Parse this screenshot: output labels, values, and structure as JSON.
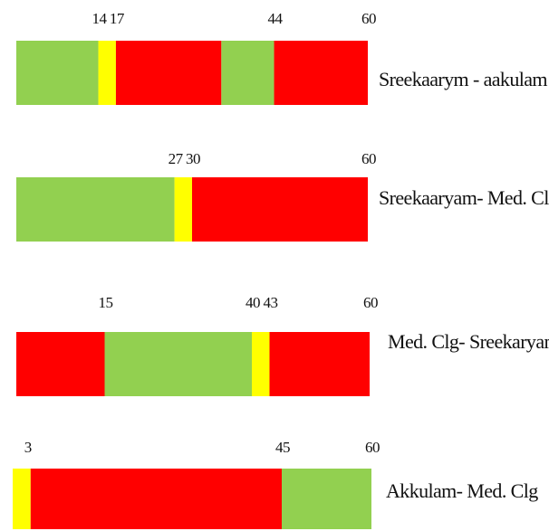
{
  "chart_data": {
    "type": "bar",
    "colors": {
      "green": "#92d050",
      "yellow": "#ffff00",
      "red": "#ff0000"
    },
    "bars": [
      {
        "route": "Sreekaarym - aakulam",
        "segments": [
          {
            "from": 0,
            "to": 14,
            "color": "green"
          },
          {
            "from": 14,
            "to": 17,
            "color": "yellow"
          },
          {
            "from": 17,
            "to": 35,
            "color": "red"
          },
          {
            "from": 35,
            "to": 44,
            "color": "green"
          },
          {
            "from": 44,
            "to": 60,
            "color": "red"
          }
        ],
        "tick_labels": [
          "14",
          "17",
          "44",
          "60"
        ],
        "tick_values": [
          14,
          17,
          44,
          60
        ]
      },
      {
        "route": "Sreekaaryam- Med. Clg",
        "segments": [
          {
            "from": 0,
            "to": 27,
            "color": "green"
          },
          {
            "from": 27,
            "to": 30,
            "color": "yellow"
          },
          {
            "from": 30,
            "to": 60,
            "color": "red"
          }
        ],
        "tick_labels": [
          "27",
          "30",
          "60"
        ],
        "tick_values": [
          27,
          30,
          60
        ]
      },
      {
        "route": "Med. Clg- Sreekaryam",
        "segments": [
          {
            "from": 0,
            "to": 15,
            "color": "red"
          },
          {
            "from": 15,
            "to": 40,
            "color": "green"
          },
          {
            "from": 40,
            "to": 43,
            "color": "yellow"
          },
          {
            "from": 43,
            "to": 60,
            "color": "red"
          }
        ],
        "tick_labels": [
          "15",
          "40",
          "43",
          "60"
        ],
        "tick_values": [
          15,
          40,
          43,
          60
        ]
      },
      {
        "route": "Akkulam- Med. Clg",
        "segments": [
          {
            "from": 0,
            "to": 3,
            "color": "yellow"
          },
          {
            "from": 3,
            "to": 45,
            "color": "red"
          },
          {
            "from": 45,
            "to": 60,
            "color": "green"
          }
        ],
        "tick_labels": [
          "3",
          "45",
          "60"
        ],
        "tick_values": [
          3,
          45,
          60
        ]
      }
    ]
  }
}
